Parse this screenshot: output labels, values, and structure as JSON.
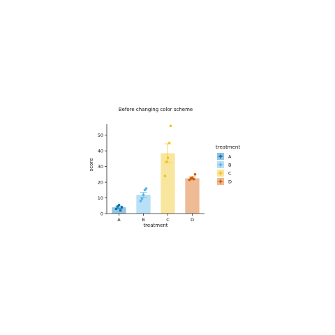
{
  "chart_data": {
    "type": "bar",
    "title": "Before changing color scheme",
    "xlabel": "treatment",
    "ylabel": "score",
    "categories": [
      "A",
      "B",
      "C",
      "D"
    ],
    "values": [
      4,
      12,
      38.5,
      22.5
    ],
    "errors": [
      0.8,
      1.5,
      6,
      0.8
    ],
    "points": [
      [
        3,
        4.5,
        5.5,
        2,
        4
      ],
      [
        8,
        9.5,
        12,
        15,
        16
      ],
      [
        24,
        33,
        35.5,
        45,
        56
      ],
      [
        21.5,
        22.5,
        23,
        22,
        25
      ]
    ],
    "colors": [
      "#0072B2",
      "#56B4E9",
      "#F0C419",
      "#D55E00"
    ],
    "ylim": [
      0,
      57
    ],
    "yticks": [
      0,
      10,
      20,
      30,
      40,
      50
    ],
    "grid": false,
    "legend": {
      "title": "treatment",
      "position": "right",
      "entries": [
        "A",
        "B",
        "C",
        "D"
      ]
    }
  }
}
